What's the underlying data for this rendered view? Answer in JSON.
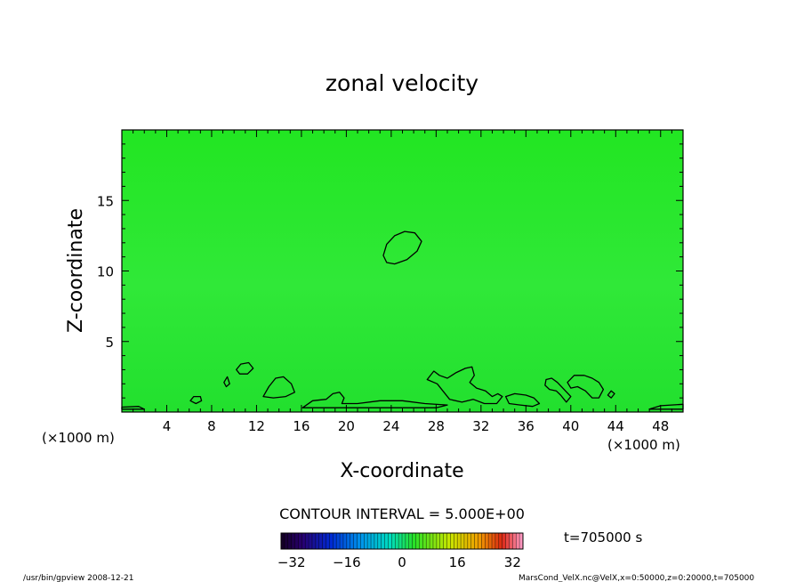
{
  "chart_data": {
    "type": "heatmap",
    "title": "zonal velocity",
    "xlabel": "X-coordinate",
    "ylabel": "Z-coordinate",
    "x_unit": "(×1000 m)",
    "x_ticks": [
      4,
      8,
      12,
      16,
      20,
      24,
      28,
      32,
      36,
      40,
      44,
      48
    ],
    "y_ticks": [
      5,
      10,
      15
    ],
    "xlim": [
      0,
      50
    ],
    "ylim": [
      0,
      20
    ],
    "contour_interval_text": "CONTOUR INTERVAL = 5.000E+00",
    "time_text": "t=705000 s",
    "colorbar": {
      "min": -35,
      "max": 35,
      "ticks": [
        -32,
        -16,
        0,
        16,
        32
      ]
    },
    "field_background_color": "#22e622",
    "contours": [
      {
        "level": 5,
        "points": [
          [
            23.3,
            11.1
          ],
          [
            23.6,
            11.9
          ],
          [
            24.3,
            12.5
          ],
          [
            25.2,
            12.8
          ],
          [
            26.1,
            12.7
          ],
          [
            26.7,
            12.1
          ],
          [
            26.3,
            11.4
          ],
          [
            25.4,
            10.8
          ],
          [
            24.3,
            10.5
          ],
          [
            23.6,
            10.6
          ]
        ]
      },
      {
        "level": 5,
        "points": [
          [
            10.2,
            3.0
          ],
          [
            10.6,
            3.4
          ],
          [
            11.3,
            3.5
          ],
          [
            11.7,
            3.1
          ],
          [
            11.2,
            2.7
          ],
          [
            10.5,
            2.7
          ]
        ]
      },
      {
        "level": 5,
        "points": [
          [
            9.1,
            2.1
          ],
          [
            9.4,
            2.5
          ],
          [
            9.6,
            2.0
          ],
          [
            9.3,
            1.8
          ]
        ]
      },
      {
        "level": 5,
        "points": [
          [
            12.6,
            1.1
          ],
          [
            13.1,
            1.8
          ],
          [
            13.7,
            2.4
          ],
          [
            14.4,
            2.5
          ],
          [
            15.1,
            2.0
          ],
          [
            15.4,
            1.4
          ],
          [
            14.6,
            1.1
          ],
          [
            13.5,
            1.0
          ]
        ]
      },
      {
        "level": 5,
        "points": [
          [
            6.1,
            0.8
          ],
          [
            6.4,
            1.1
          ],
          [
            7.0,
            1.1
          ],
          [
            7.1,
            0.8
          ],
          [
            6.6,
            0.6
          ]
        ]
      },
      {
        "level": 5,
        "points": [
          [
            16.1,
            0.3
          ],
          [
            17.0,
            0.8
          ],
          [
            18.2,
            0.9
          ],
          [
            18.8,
            1.3
          ],
          [
            19.4,
            1.4
          ],
          [
            19.8,
            1.0
          ],
          [
            19.6,
            0.6
          ],
          [
            21.0,
            0.6
          ],
          [
            23.0,
            0.8
          ],
          [
            25.0,
            0.8
          ],
          [
            27.0,
            0.6
          ],
          [
            29.0,
            0.5
          ],
          [
            28.0,
            0.3
          ],
          [
            24.0,
            0.3
          ],
          [
            20.0,
            0.3
          ]
        ]
      },
      {
        "level": 5,
        "points": [
          [
            27.2,
            2.3
          ],
          [
            27.8,
            2.9
          ],
          [
            28.3,
            2.6
          ],
          [
            29.0,
            2.4
          ],
          [
            29.8,
            2.8
          ],
          [
            30.6,
            3.1
          ],
          [
            31.2,
            3.2
          ],
          [
            31.4,
            2.6
          ],
          [
            31.0,
            2.1
          ],
          [
            31.6,
            1.7
          ],
          [
            32.4,
            1.5
          ],
          [
            33.0,
            1.1
          ],
          [
            33.5,
            1.3
          ],
          [
            33.9,
            1.1
          ],
          [
            33.4,
            0.6
          ],
          [
            32.3,
            0.6
          ],
          [
            31.3,
            0.9
          ],
          [
            30.3,
            0.7
          ],
          [
            29.2,
            0.9
          ],
          [
            28.6,
            1.5
          ],
          [
            28.1,
            2.0
          ]
        ]
      },
      {
        "level": 5,
        "points": [
          [
            34.2,
            1.1
          ],
          [
            35.0,
            1.3
          ],
          [
            36.0,
            1.2
          ],
          [
            36.7,
            1.0
          ],
          [
            37.2,
            0.6
          ],
          [
            36.6,
            0.4
          ],
          [
            35.5,
            0.5
          ],
          [
            34.5,
            0.6
          ]
        ]
      },
      {
        "level": 5,
        "points": [
          [
            37.8,
            2.3
          ],
          [
            38.3,
            2.4
          ],
          [
            38.8,
            2.1
          ],
          [
            39.4,
            1.6
          ],
          [
            40.0,
            1.1
          ],
          [
            39.6,
            0.7
          ],
          [
            39.1,
            1.2
          ],
          [
            38.7,
            1.5
          ],
          [
            38.1,
            1.6
          ],
          [
            37.7,
            1.9
          ]
        ]
      },
      {
        "level": 5,
        "points": [
          [
            39.7,
            2.1
          ],
          [
            40.3,
            2.6
          ],
          [
            41.2,
            2.6
          ],
          [
            41.9,
            2.4
          ],
          [
            42.5,
            2.1
          ],
          [
            42.9,
            1.6
          ],
          [
            42.5,
            1.0
          ],
          [
            41.9,
            1.0
          ],
          [
            41.3,
            1.5
          ],
          [
            40.6,
            1.8
          ],
          [
            40.0,
            1.7
          ]
        ]
      },
      {
        "level": 5,
        "points": [
          [
            43.3,
            1.2
          ],
          [
            43.6,
            1.5
          ],
          [
            43.9,
            1.3
          ],
          [
            43.6,
            1.0
          ]
        ]
      },
      {
        "level": 5,
        "points": [
          [
            0.0,
            0.35
          ],
          [
            1.5,
            0.4
          ],
          [
            2.0,
            0.2
          ],
          [
            0.0,
            0.2
          ]
        ]
      },
      {
        "level": 5,
        "points": [
          [
            47.0,
            0.2
          ],
          [
            48.0,
            0.45
          ],
          [
            50.0,
            0.55
          ],
          [
            50.0,
            0.2
          ]
        ]
      }
    ]
  },
  "footer": {
    "left_text": "/usr/bin/gpview   2008-12-21",
    "right_text": "MarsCond_VelX.nc@VelX,x=0:50000,z=0:20000,t=705000"
  }
}
